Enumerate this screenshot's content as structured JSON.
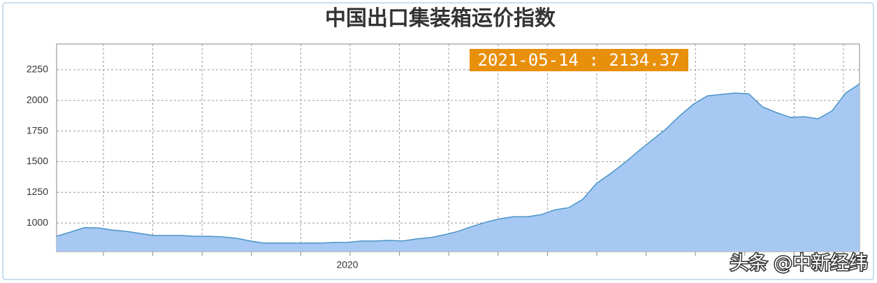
{
  "chart_data": {
    "type": "area",
    "title": "中国出口集装箱运价指数",
    "annotation": "2021-05-14 : 2134.37",
    "watermark": "头条 @中新经纬",
    "categories": [
      null,
      null,
      null,
      null,
      null,
      null,
      null,
      null,
      null,
      null,
      null,
      null,
      null,
      null,
      null,
      null,
      null,
      null,
      null,
      null,
      null,
      "2020",
      null,
      null,
      null,
      null,
      null,
      null,
      null,
      null,
      null,
      null,
      null,
      null,
      null,
      null,
      null,
      null,
      null,
      null,
      null,
      null,
      null,
      null,
      null,
      null,
      null,
      null,
      null,
      null,
      null,
      null,
      null,
      null,
      null,
      null,
      null,
      null,
      null
    ],
    "values": [
      892,
      926,
      962,
      960,
      943,
      932,
      915,
      898,
      898,
      898,
      892,
      892,
      887,
      875,
      853,
      836,
      836,
      836,
      836,
      836,
      841,
      841,
      853,
      853,
      858,
      853,
      870,
      881,
      904,
      932,
      972,
      1006,
      1034,
      1051,
      1051,
      1068,
      1108,
      1125,
      1193,
      1323,
      1402,
      1488,
      1584,
      1675,
      1765,
      1873,
      1969,
      2037,
      2049,
      2060,
      2054,
      1947,
      1901,
      1862,
      1867,
      1850,
      1913,
      2060,
      2134.37
    ],
    "color": "#a6c8f2",
    "line_color": "#4a94c8",
    "ylim": [
      767,
      2460
    ],
    "yticks": [
      1000,
      1250,
      1500,
      1750,
      2000,
      2250
    ],
    "grid": true
  }
}
